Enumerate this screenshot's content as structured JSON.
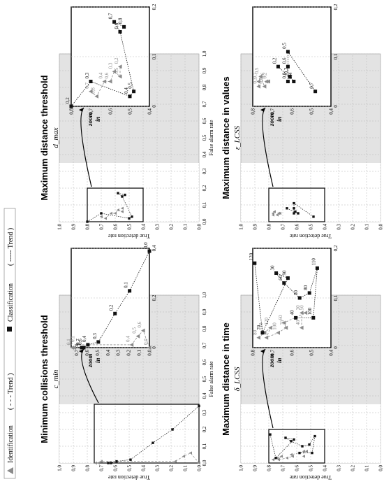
{
  "legend": {
    "identification_label": "Identification",
    "identification_trend": "( - - - Trend )",
    "classification_label": "Classification",
    "classification_trend": "( ----- Trend )"
  },
  "colors": {
    "identification": "#8a8a8a",
    "classification": "#111111",
    "shaded_region": "#e3e3e3",
    "grid": "#b5b5b5",
    "zoom_box": "#000000"
  },
  "zoom_label": {
    "line1": "zoom",
    "line2": "in"
  },
  "chart_data": [
    {
      "type": "scatter",
      "title": "Minimum collisions threshold",
      "param_label": "c_min",
      "xlabel": "False alarm rate",
      "ylabel": "True detection rate",
      "xlim": [
        0,
        1
      ],
      "ylim": [
        0,
        1
      ],
      "zoom_xlim": [
        0,
        0.35
      ],
      "zoom_ylim": [
        0,
        0.75
      ],
      "series": [
        {
          "name": "Identification",
          "points": [
            {
              "x": 0.0,
              "y": 0.0,
              "label": "0,0"
            },
            {
              "x": 0.06,
              "y": 0.06,
              "label": "0,6"
            },
            {
              "x": 0.04,
              "y": 0.11,
              "label": "0,5"
            },
            {
              "x": 0.01,
              "y": 0.17,
              "label": "0,4"
            },
            {
              "x": 0.01,
              "y": 0.7,
              "label": "0,1"
            },
            {
              "x": 0.0,
              "y": 0.72,
              "label": "0,1"
            },
            {
              "x": 0.0,
              "y": 0.74,
              "label": "0,1"
            }
          ]
        },
        {
          "name": "Classification",
          "points": [
            {
              "x": 0.34,
              "y": 0.0,
              "label": "0,0"
            },
            {
              "x": 0.2,
              "y": 0.19,
              "label": "0,1"
            },
            {
              "x": 0.12,
              "y": 0.33,
              "label": "0,2"
            },
            {
              "x": 0.02,
              "y": 0.49,
              "label": "0,3"
            },
            {
              "x": 0.01,
              "y": 0.59,
              "label": "0,4"
            },
            {
              "x": 0.0,
              "y": 0.63,
              "label": "0,6"
            },
            {
              "x": 0.0,
              "y": 0.65,
              "label": "0,7"
            }
          ]
        }
      ]
    },
    {
      "type": "scatter",
      "title": "Maximum distance threshold",
      "param_label": "d_max",
      "xlabel": "False alarm rate",
      "ylabel": "True detection rate",
      "xlim": [
        0,
        1
      ],
      "ylim": [
        0,
        1
      ],
      "zoom_xlim": [
        0,
        0.2
      ],
      "zoom_ylim": [
        0.4,
        0.8
      ],
      "series": [
        {
          "name": "Identification",
          "points": [
            {
              "x": 0.03,
              "y": 0.7,
              "label": "0,7"
            },
            {
              "x": 0.02,
              "y": 0.67,
              "label": "0,8"
            },
            {
              "x": 0.05,
              "y": 0.63,
              "label": "0,4"
            },
            {
              "x": 0.05,
              "y": 0.6,
              "label": "0,6"
            },
            {
              "x": 0.07,
              "y": 0.58,
              "label": "0,3"
            },
            {
              "x": 0.06,
              "y": 0.55,
              "label": "0,5"
            },
            {
              "x": 0.08,
              "y": 0.55,
              "label": "0,2"
            }
          ]
        },
        {
          "name": "Classification",
          "points": [
            {
              "x": 0.0,
              "y": 0.8,
              "label": "0,2"
            },
            {
              "x": 0.05,
              "y": 0.7,
              "label": "0,3"
            },
            {
              "x": 0.02,
              "y": 0.5,
              "label": "0,4"
            },
            {
              "x": 0.03,
              "y": 0.48,
              "label": "0,5"
            },
            {
              "x": 0.15,
              "y": 0.55,
              "label": "0,6"
            },
            {
              "x": 0.17,
              "y": 0.58,
              "label": "0,7"
            },
            {
              "x": 0.16,
              "y": 0.53,
              "label": "0,8"
            }
          ]
        }
      ]
    },
    {
      "type": "scatter",
      "title": "Maximum distance in time",
      "param_label": "δ_LCSS",
      "xlabel": "False alarm rate",
      "ylabel": "True detection rate",
      "xlim": [
        0,
        1
      ],
      "ylim": [
        0,
        1
      ],
      "zoom_xlim": [
        0,
        0.2
      ],
      "zoom_ylim": [
        0.4,
        0.8
      ],
      "series": [
        {
          "name": "Identification",
          "points": [
            {
              "x": 0.02,
              "y": 0.77,
              "label": "80"
            },
            {
              "x": 0.03,
              "y": 0.74,
              "label": "110"
            },
            {
              "x": 0.04,
              "y": 0.71,
              "label": "120"
            },
            {
              "x": 0.02,
              "y": 0.73,
              "label": "90"
            },
            {
              "x": 0.03,
              "y": 0.67,
              "label": "100"
            },
            {
              "x": 0.04,
              "y": 0.63,
              "label": "70"
            },
            {
              "x": 0.05,
              "y": 0.64,
              "label": "60"
            },
            {
              "x": 0.07,
              "y": 0.53,
              "label": "50"
            },
            {
              "x": 0.07,
              "y": 0.55,
              "label": "30"
            },
            {
              "x": 0.04,
              "y": 0.55,
              "label": "40"
            }
          ]
        },
        {
          "name": "Classification",
          "points": [
            {
              "x": 0.17,
              "y": 0.79,
              "label": "120"
            },
            {
              "x": 0.03,
              "y": 0.75,
              "label": "70"
            },
            {
              "x": 0.14,
              "y": 0.62,
              "label": "90"
            },
            {
              "x": 0.15,
              "y": 0.68,
              "label": "30"
            },
            {
              "x": 0.13,
              "y": 0.64,
              "label": "60"
            },
            {
              "x": 0.1,
              "y": 0.56,
              "label": "50"
            },
            {
              "x": 0.11,
              "y": 0.51,
              "label": "80"
            },
            {
              "x": 0.16,
              "y": 0.47,
              "label": "110"
            },
            {
              "x": 0.06,
              "y": 0.49,
              "label": "100"
            },
            {
              "x": 0.06,
              "y": 0.58,
              "label": "40"
            }
          ]
        }
      ]
    },
    {
      "type": "scatter",
      "title": "Maximum distance in values",
      "param_label": "ε_LCSS",
      "xlabel": "False alarm rate",
      "ylabel": "True detection rate",
      "xlim": [
        0,
        1
      ],
      "ylim": [
        0,
        1
      ],
      "zoom_xlim": [
        0,
        0.2
      ],
      "zoom_ylim": [
        0.4,
        0.8
      ],
      "series": [
        {
          "name": "Identification",
          "points": [
            {
              "x": 0.04,
              "y": 0.77,
              "label": "0,3"
            },
            {
              "x": 0.05,
              "y": 0.77,
              "label": "0,7"
            },
            {
              "x": 0.06,
              "y": 0.76,
              "label": "0,5"
            },
            {
              "x": 0.04,
              "y": 0.74,
              "label": "0,8"
            },
            {
              "x": 0.05,
              "y": 0.73,
              "label": "0,6"
            },
            {
              "x": 0.05,
              "y": 0.72,
              "label": "0,2"
            }
          ]
        },
        {
          "name": "Classification",
          "points": [
            {
              "x": 0.08,
              "y": 0.67,
              "label": "0,2"
            },
            {
              "x": 0.05,
              "y": 0.59,
              "label": "0,4"
            },
            {
              "x": 0.06,
              "y": 0.61,
              "label": "0,3"
            },
            {
              "x": 0.05,
              "y": 0.62,
              "label": "0,8"
            },
            {
              "x": 0.08,
              "y": 0.62,
              "label": "0,6"
            },
            {
              "x": 0.11,
              "y": 0.62,
              "label": "0,5"
            },
            {
              "x": 0.03,
              "y": 0.48,
              "label": "0,7"
            }
          ]
        }
      ]
    }
  ]
}
